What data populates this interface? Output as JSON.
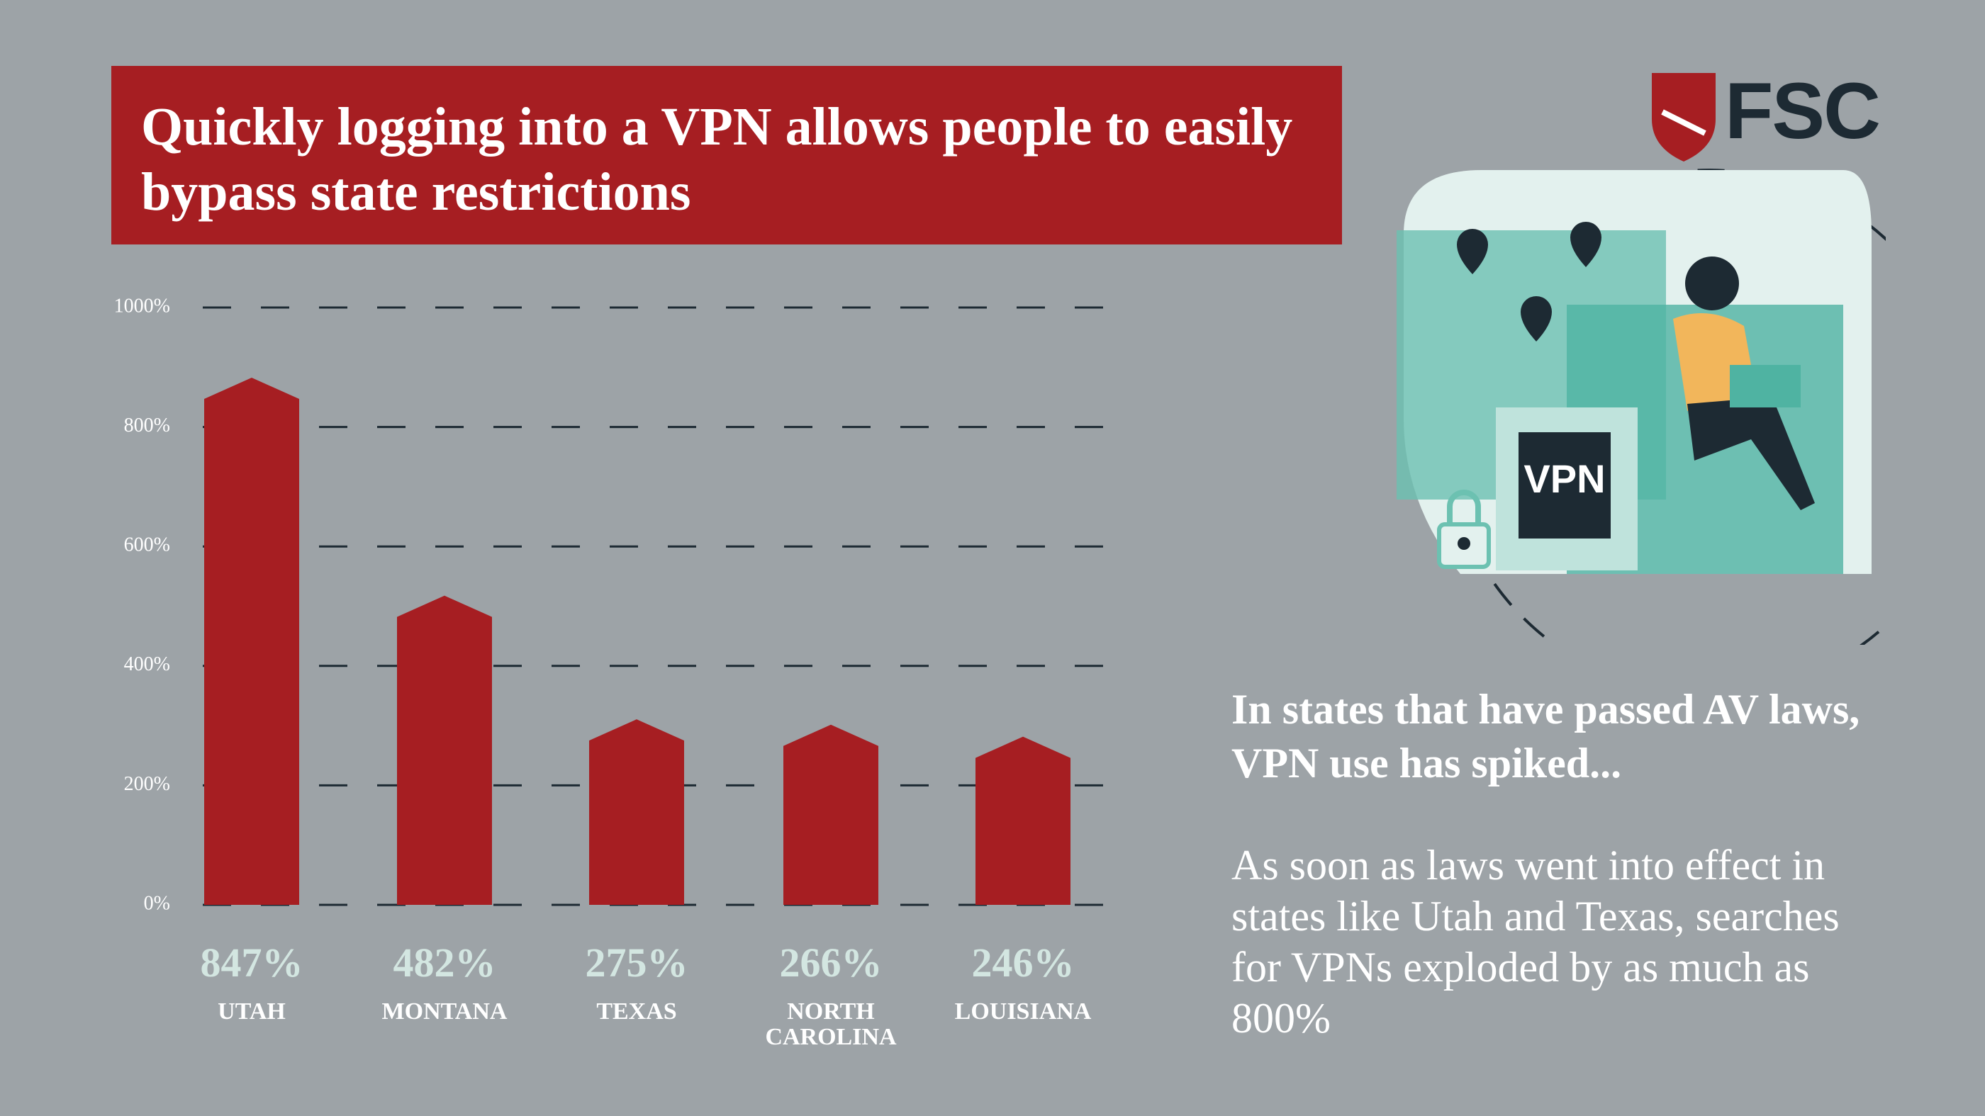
{
  "chart_data": {
    "type": "bar",
    "title": "Quickly logging into a VPN allows people to easily bypass state restrictions",
    "categories": [
      "UTAH",
      "MONTANA",
      "TEXAS",
      "NORTH CAROLINA",
      "LOUISIANA"
    ],
    "values": [
      847,
      482,
      275,
      266,
      246
    ],
    "value_labels": [
      "847%",
      "482%",
      "275%",
      "266%",
      "246%"
    ],
    "color": "#a61e22",
    "ylim": [
      0,
      1000
    ],
    "yticks": [
      {
        "value": 0,
        "label": "0%"
      },
      {
        "value": 200,
        "label": "200%"
      },
      {
        "value": 400,
        "label": "400%"
      },
      {
        "value": 600,
        "label": "600%"
      },
      {
        "value": 800,
        "label": "800%"
      },
      {
        "value": 1000,
        "label": "1000%"
      }
    ],
    "grid": true
  },
  "logo": "FSC",
  "illustration_label": "VPN",
  "heading": "In states that have passed AV laws, VPN use has spiked...",
  "body": "As soon as laws went into effect in states like Utah and Texas, searches for VPNs exploded by as much as 800%"
}
